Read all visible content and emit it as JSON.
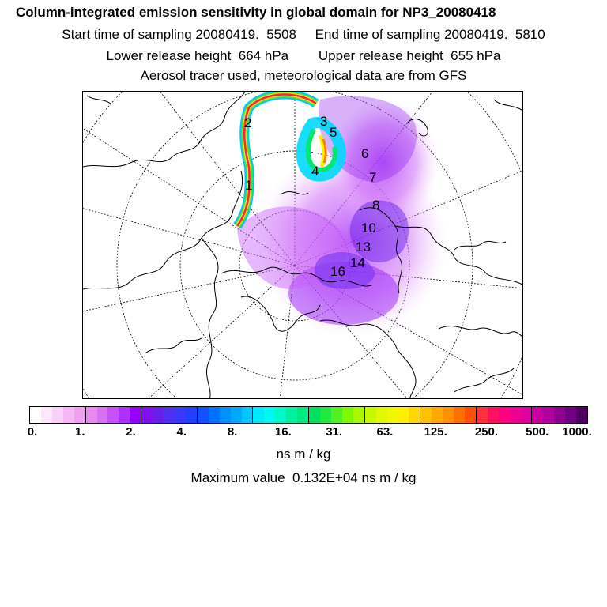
{
  "header": {
    "title": "Column-integrated emission sensitivity in global domain for NP3_20080418",
    "sampling_line": "Start time of sampling 20080419.  5508     End time of sampling 20080419.  5810",
    "release_line": "Lower release height  664 hPa        Upper release height  655 hPa",
    "tracer_line": "Aerosol tracer used, meteorological data are from GFS"
  },
  "map": {
    "projection": "north-polar-stereographic",
    "trajectory_labels": [
      "1",
      "2",
      "3",
      "4",
      "5",
      "6",
      "7",
      "8"
    ],
    "cluster_labels": [
      "10",
      "13",
      "14",
      "16"
    ]
  },
  "colorbar": {
    "colors": [
      "#ffffff",
      "#fce8fc",
      "#f8d0f8",
      "#f4b8f4",
      "#f0a0f0",
      "#e888f0",
      "#d870f4",
      "#c850f8",
      "#b030f8",
      "#9800f8",
      "#8010f0",
      "#6820e8",
      "#5030f0",
      "#3838f8",
      "#2040ff",
      "#1050ff",
      "#0070ff",
      "#0090ff",
      "#00a8ff",
      "#00c8ff",
      "#00e8ff",
      "#00f8f0",
      "#00f8c8",
      "#00f0a0",
      "#00e880",
      "#00e060",
      "#20e840",
      "#50f020",
      "#80f800",
      "#a8f800",
      "#c8f800",
      "#e0f800",
      "#f0f800",
      "#fff000",
      "#ffd800",
      "#ffc000",
      "#ffa800",
      "#ff9000",
      "#ff7000",
      "#ff5000",
      "#ff3040",
      "#ff1060",
      "#ff0080",
      "#f00090",
      "#e000a0",
      "#c800a0",
      "#b000a0",
      "#900090",
      "#700080",
      "#500060"
    ],
    "tick_labels": [
      "0.",
      "1.",
      "2.",
      "4.",
      "8.",
      "16.",
      "31.",
      "63.",
      "125.",
      "250.",
      "500.",
      "1000."
    ],
    "units": "ns m / kg"
  },
  "footer": {
    "max_value": "Maximum value  0.132E+04 ns m / kg"
  }
}
